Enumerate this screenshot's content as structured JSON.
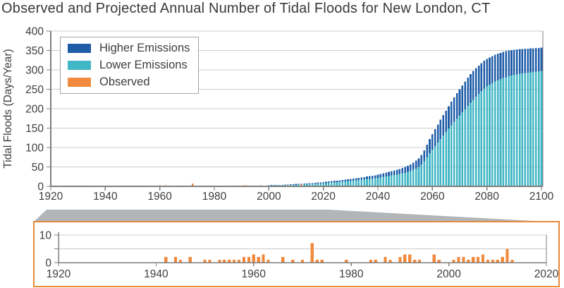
{
  "title": "Observed and Projected Annual Number of Tidal Floods for New London, CT",
  "colors": {
    "higher_emissions": "#1f5ca8",
    "lower_emissions": "#41b6c4",
    "observed": "#f28a3d",
    "gridline": "#cccccc",
    "axis": "#7f7f7f",
    "text": "#3e3e3e",
    "callout_gray": "#b2b6b9",
    "inset_border": "#e8893c",
    "background": "#ffffff"
  },
  "legend": {
    "items": [
      {
        "label": "Higher Emissions",
        "color_key": "higher_emissions"
      },
      {
        "label": "Lower Emissions",
        "color_key": "lower_emissions"
      },
      {
        "label": "Observed",
        "color_key": "observed"
      }
    ]
  },
  "chart_data": [
    {
      "id": "main",
      "type": "bar",
      "title": "Observed and Projected Annual Number of Tidal Floods for New London, CT",
      "xlabel": "",
      "ylabel": "Tidal Floods (Days/Year)",
      "ylim": [
        0,
        400
      ],
      "yticks": [
        0,
        50,
        100,
        150,
        200,
        250,
        300,
        350,
        400
      ],
      "xlim": [
        1920,
        2100
      ],
      "xticks": [
        1920,
        1940,
        1960,
        1980,
        2000,
        2020,
        2040,
        2060,
        2080,
        2100
      ],
      "grid": true,
      "legend_position": "top-left",
      "series": [
        {
          "name": "Higher Emissions",
          "role": "projection_total",
          "x": [
            2000,
            2005,
            2010,
            2015,
            2020,
            2025,
            2030,
            2035,
            2040,
            2045,
            2050,
            2055,
            2060,
            2065,
            2070,
            2075,
            2080,
            2085,
            2090,
            2095,
            2100
          ],
          "y": [
            3,
            4,
            6,
            8,
            11,
            15,
            19,
            24,
            30,
            39,
            50,
            72,
            135,
            195,
            250,
            297,
            328,
            344,
            352,
            355,
            357
          ]
        },
        {
          "name": "Lower Emissions",
          "role": "projection_lower",
          "x": [
            2000,
            2005,
            2010,
            2015,
            2020,
            2025,
            2030,
            2035,
            2040,
            2045,
            2050,
            2055,
            2060,
            2065,
            2070,
            2075,
            2080,
            2085,
            2090,
            2095,
            2100
          ],
          "y": [
            2,
            3,
            4,
            6,
            8,
            11,
            14,
            18,
            22,
            28,
            35,
            50,
            95,
            140,
            183,
            223,
            257,
            276,
            287,
            293,
            297
          ]
        },
        {
          "name": "Observed",
          "role": "observed",
          "x": [
            1942,
            1944,
            1945,
            1947,
            1950,
            1951,
            1953,
            1954,
            1955,
            1956,
            1957,
            1958,
            1959,
            1960,
            1961,
            1962,
            1963,
            1966,
            1968,
            1970,
            1972,
            1973,
            1974,
            1979,
            1984,
            1985,
            1987,
            1988,
            1990,
            1991,
            1992,
            1993,
            1994,
            1997,
            1998,
            2001,
            2002,
            2003,
            2004,
            2005,
            2006,
            2007,
            2008,
            2009,
            2010,
            2011,
            2012,
            2013
          ],
          "y": [
            2,
            2,
            1,
            2,
            1,
            1,
            1,
            1,
            1,
            1,
            1,
            2,
            2,
            3,
            2,
            3,
            1,
            2,
            1,
            1,
            7,
            1,
            1,
            1,
            1,
            1,
            2,
            1,
            2,
            3,
            3,
            1,
            1,
            3,
            1,
            1,
            2,
            2,
            1,
            2,
            2,
            3,
            1,
            1,
            1,
            2,
            5,
            1
          ]
        }
      ]
    },
    {
      "id": "inset",
      "type": "bar",
      "title": "",
      "xlabel": "",
      "ylabel": "",
      "ylim": [
        0,
        12
      ],
      "yticks": [
        0,
        5,
        10
      ],
      "ytick_labels_shown": [
        0,
        10
      ],
      "xlim": [
        1920,
        2020
      ],
      "xticks": [
        1920,
        1940,
        1960,
        1980,
        2000,
        2020
      ],
      "grid": true,
      "series": [
        {
          "name": "Observed",
          "role": "observed",
          "x": [
            1942,
            1944,
            1945,
            1947,
            1950,
            1951,
            1953,
            1954,
            1955,
            1956,
            1957,
            1958,
            1959,
            1960,
            1961,
            1962,
            1963,
            1966,
            1968,
            1970,
            1972,
            1973,
            1974,
            1979,
            1984,
            1985,
            1987,
            1988,
            1990,
            1991,
            1992,
            1993,
            1994,
            1997,
            1998,
            2001,
            2002,
            2003,
            2004,
            2005,
            2006,
            2007,
            2008,
            2009,
            2010,
            2011,
            2012,
            2013
          ],
          "y": [
            2,
            2,
            1,
            2,
            1,
            1,
            1,
            1,
            1,
            1,
            1,
            2,
            2,
            3,
            2,
            3,
            1,
            2,
            1,
            1,
            7,
            1,
            1,
            1,
            1,
            1,
            2,
            1,
            2,
            3,
            3,
            1,
            1,
            3,
            1,
            1,
            2,
            2,
            1,
            2,
            2,
            3,
            1,
            1,
            1,
            2,
            5,
            1
          ]
        }
      ]
    }
  ]
}
